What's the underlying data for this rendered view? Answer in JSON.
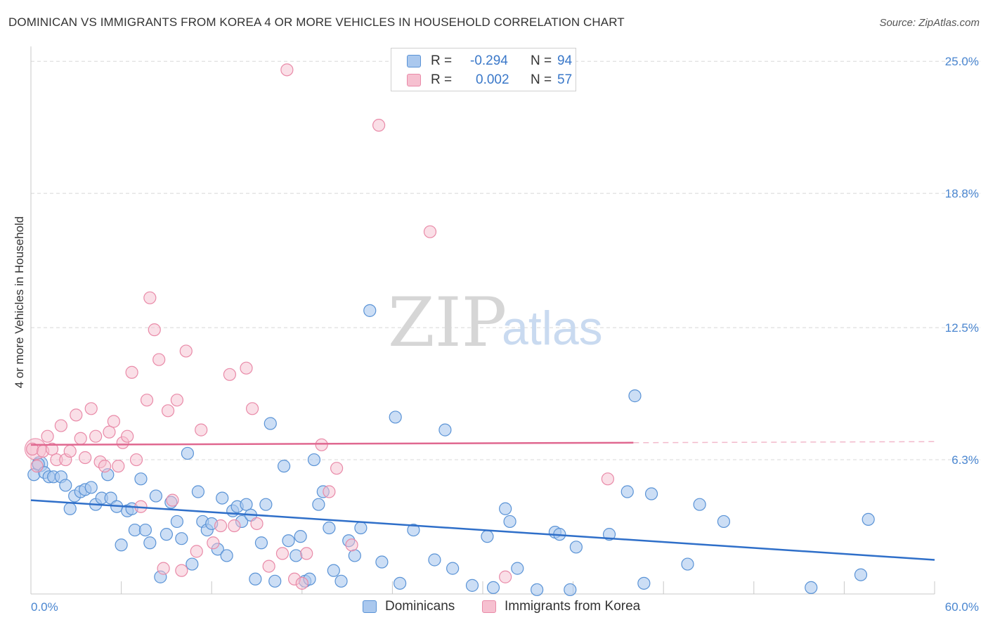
{
  "title": "DOMINICAN VS IMMIGRANTS FROM KOREA 4 OR MORE VEHICLES IN HOUSEHOLD CORRELATION CHART",
  "source": "Source: ZipAtlas.com",
  "watermark": {
    "zip": "ZIP",
    "atlas": "atlas"
  },
  "stats": {
    "row1": {
      "r_label": "R =",
      "r_value": "-0.294",
      "n_label": "N =",
      "n_value": "94"
    },
    "row2": {
      "r_label": "R =",
      "r_value": "0.002",
      "n_label": "N =",
      "n_value": "57"
    }
  },
  "legend": {
    "series1": "Dominicans",
    "series2": "Immigrants from Korea"
  },
  "colors": {
    "blue_fill": "#aac8ee",
    "blue_stroke": "#5a93d6",
    "blue_line": "#2f6fc9",
    "pink_fill": "#f6c0d0",
    "pink_stroke": "#e98aa8",
    "pink_line": "#e06890",
    "grid": "#d8d8d8",
    "tick_text": "#4a86d0"
  },
  "chart_data": {
    "type": "scatter",
    "title": "DOMINICAN VS IMMIGRANTS FROM KOREA 4 OR MORE VEHICLES IN HOUSEHOLD CORRELATION CHART",
    "xlabel": "",
    "ylabel": "4 or more Vehicles in Household",
    "xlim": [
      0,
      60
    ],
    "ylim": [
      0,
      25.7
    ],
    "x_tick_labels": [
      {
        "value": 0,
        "label": "0.0%"
      },
      {
        "value": 60,
        "label": "60.0%"
      }
    ],
    "y_tick_labels": [
      {
        "value": 6.3,
        "label": "6.3%"
      },
      {
        "value": 12.5,
        "label": "12.5%"
      },
      {
        "value": 18.8,
        "label": "18.8%"
      },
      {
        "value": 25.0,
        "label": "25.0%"
      }
    ],
    "x_minor_ticks": [
      6,
      12,
      18,
      24,
      30,
      36,
      42,
      48,
      54,
      60
    ],
    "series": [
      {
        "name": "Dominicans",
        "color": "blue",
        "r": -0.294,
        "n": 94,
        "trend": {
          "x0": 0,
          "y0": 4.4,
          "x1": 60,
          "y1": 1.6
        },
        "points": [
          [
            0.2,
            5.6
          ],
          [
            0.5,
            6.1
          ],
          [
            0.9,
            5.7
          ],
          [
            1.2,
            5.5
          ],
          [
            1.5,
            5.5
          ],
          [
            2.0,
            5.5
          ],
          [
            2.3,
            5.1
          ],
          [
            2.6,
            4.0
          ],
          [
            2.9,
            4.6
          ],
          [
            3.3,
            4.8
          ],
          [
            3.6,
            4.9
          ],
          [
            4.0,
            5.0
          ],
          [
            4.3,
            4.2
          ],
          [
            4.7,
            4.5
          ],
          [
            5.1,
            5.6
          ],
          [
            5.3,
            4.5
          ],
          [
            5.7,
            4.1
          ],
          [
            6.0,
            2.3
          ],
          [
            6.4,
            3.9
          ],
          [
            6.7,
            4.0
          ],
          [
            6.9,
            3.0
          ],
          [
            7.3,
            5.4
          ],
          [
            7.6,
            3.0
          ],
          [
            7.9,
            2.4
          ],
          [
            8.3,
            4.6
          ],
          [
            8.6,
            0.8
          ],
          [
            9.0,
            2.8
          ],
          [
            9.3,
            4.3
          ],
          [
            9.7,
            3.4
          ],
          [
            10.0,
            2.6
          ],
          [
            10.4,
            6.6
          ],
          [
            10.7,
            1.4
          ],
          [
            11.1,
            4.8
          ],
          [
            11.4,
            3.4
          ],
          [
            11.7,
            3.0
          ],
          [
            12.0,
            3.3
          ],
          [
            12.4,
            2.1
          ],
          [
            12.7,
            4.5
          ],
          [
            13.0,
            1.8
          ],
          [
            13.4,
            3.9
          ],
          [
            13.7,
            4.1
          ],
          [
            14.0,
            3.4
          ],
          [
            14.3,
            4.2
          ],
          [
            14.6,
            3.7
          ],
          [
            14.9,
            0.7
          ],
          [
            15.3,
            2.4
          ],
          [
            15.6,
            4.2
          ],
          [
            15.9,
            8.0
          ],
          [
            16.2,
            0.6
          ],
          [
            16.8,
            6.0
          ],
          [
            17.1,
            2.5
          ],
          [
            17.6,
            1.8
          ],
          [
            17.9,
            2.7
          ],
          [
            18.2,
            0.6
          ],
          [
            18.5,
            0.7
          ],
          [
            18.8,
            6.3
          ],
          [
            19.1,
            4.2
          ],
          [
            19.4,
            4.8
          ],
          [
            19.8,
            3.1
          ],
          [
            20.1,
            1.1
          ],
          [
            20.6,
            0.6
          ],
          [
            21.1,
            2.5
          ],
          [
            21.5,
            1.8
          ],
          [
            21.9,
            3.1
          ],
          [
            22.5,
            13.3
          ],
          [
            23.3,
            1.5
          ],
          [
            24.2,
            8.3
          ],
          [
            24.5,
            0.5
          ],
          [
            25.4,
            3.0
          ],
          [
            26.8,
            1.6
          ],
          [
            27.5,
            7.7
          ],
          [
            28.0,
            1.2
          ],
          [
            29.3,
            0.4
          ],
          [
            30.3,
            2.7
          ],
          [
            30.7,
            0.3
          ],
          [
            31.5,
            4.0
          ],
          [
            31.8,
            3.4
          ],
          [
            32.3,
            1.2
          ],
          [
            33.6,
            0.2
          ],
          [
            34.8,
            2.9
          ],
          [
            35.1,
            2.8
          ],
          [
            35.8,
            0.2
          ],
          [
            36.2,
            2.2
          ],
          [
            38.4,
            2.8
          ],
          [
            39.6,
            4.8
          ],
          [
            40.1,
            9.3
          ],
          [
            40.7,
            0.5
          ],
          [
            41.2,
            4.7
          ],
          [
            43.6,
            1.4
          ],
          [
            44.4,
            4.2
          ],
          [
            46.0,
            3.4
          ],
          [
            51.8,
            0.3
          ],
          [
            55.1,
            0.9
          ],
          [
            55.6,
            3.5
          ]
        ]
      },
      {
        "name": "Immigrants from Korea",
        "color": "pink",
        "r": 0.002,
        "n": 57,
        "trend": {
          "x0": 0,
          "y0": 7.0,
          "x1": 40,
          "y1": 7.1,
          "dash_to": 60
        },
        "points": [
          [
            0.1,
            6.8
          ],
          [
            0.4,
            6.0
          ],
          [
            0.8,
            6.7
          ],
          [
            1.1,
            7.4
          ],
          [
            1.4,
            6.8
          ],
          [
            1.7,
            6.3
          ],
          [
            2.0,
            7.9
          ],
          [
            2.3,
            6.3
          ],
          [
            2.6,
            6.7
          ],
          [
            3.0,
            8.4
          ],
          [
            3.3,
            7.3
          ],
          [
            3.6,
            6.4
          ],
          [
            4.0,
            8.7
          ],
          [
            4.3,
            7.4
          ],
          [
            4.6,
            6.2
          ],
          [
            4.9,
            6.0
          ],
          [
            5.2,
            7.6
          ],
          [
            5.5,
            8.1
          ],
          [
            5.8,
            6.0
          ],
          [
            6.1,
            7.1
          ],
          [
            6.4,
            7.4
          ],
          [
            6.7,
            10.4
          ],
          [
            7.0,
            6.3
          ],
          [
            7.3,
            4.1
          ],
          [
            7.7,
            9.1
          ],
          [
            7.9,
            13.9
          ],
          [
            8.2,
            12.4
          ],
          [
            8.5,
            11.0
          ],
          [
            8.8,
            1.2
          ],
          [
            9.1,
            8.6
          ],
          [
            9.4,
            4.4
          ],
          [
            9.7,
            9.1
          ],
          [
            10.0,
            1.1
          ],
          [
            10.3,
            11.4
          ],
          [
            11.0,
            2.0
          ],
          [
            11.3,
            7.7
          ],
          [
            12.1,
            2.4
          ],
          [
            12.6,
            3.2
          ],
          [
            13.2,
            10.3
          ],
          [
            13.5,
            3.2
          ],
          [
            14.3,
            10.6
          ],
          [
            14.7,
            8.7
          ],
          [
            15.0,
            3.3
          ],
          [
            15.8,
            1.3
          ],
          [
            16.7,
            1.9
          ],
          [
            17.0,
            24.6
          ],
          [
            17.5,
            0.7
          ],
          [
            18.0,
            0.5
          ],
          [
            18.3,
            1.9
          ],
          [
            19.3,
            7.0
          ],
          [
            19.8,
            4.8
          ],
          [
            20.3,
            5.9
          ],
          [
            21.3,
            2.3
          ],
          [
            23.1,
            22.0
          ],
          [
            26.5,
            17.0
          ],
          [
            31.5,
            0.8
          ],
          [
            38.3,
            5.4
          ]
        ]
      }
    ]
  }
}
